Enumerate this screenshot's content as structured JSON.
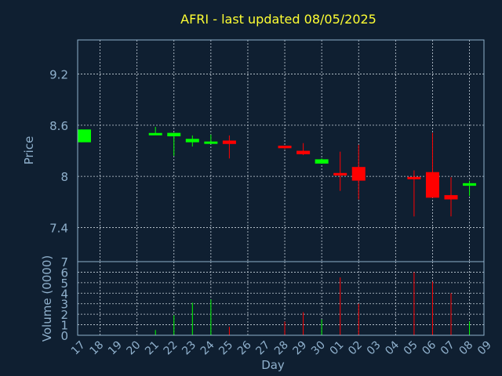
{
  "chart_data": {
    "type": "candlestick",
    "title": "AFRI - last updated 08/05/2025",
    "xlabel": "Day",
    "price_panel": {
      "ylabel": "Price",
      "ylim": [
        7.0,
        9.6
      ],
      "yticks": [
        "9.2",
        "8.6",
        "8",
        "7.4"
      ]
    },
    "volume_panel": {
      "ylabel": "Volume (0000)",
      "ylim": [
        0,
        7
      ],
      "yticks": [
        "0",
        "1",
        "2",
        "3",
        "4",
        "5",
        "6",
        "7"
      ]
    },
    "colors": {
      "up": "#00ff00",
      "down": "#ff0000"
    },
    "x_labels": [
      "17",
      "18",
      "19",
      "20",
      "21",
      "22",
      "23",
      "24",
      "25",
      "26",
      "27",
      "28",
      "29",
      "30",
      "01",
      "02",
      "03",
      "04",
      "05",
      "06",
      "07",
      "08",
      "09"
    ],
    "candles": [
      {
        "x": "17",
        "open": 8.4,
        "high": 8.55,
        "low": 8.4,
        "close": 8.55,
        "volume": 0
      },
      {
        "x": "21",
        "open": 8.49,
        "high": 8.58,
        "low": 8.49,
        "close": 8.5,
        "volume": 0.5
      },
      {
        "x": "22",
        "open": 8.47,
        "high": 8.51,
        "low": 8.24,
        "close": 8.51,
        "volume": 1.9
      },
      {
        "x": "23",
        "open": 8.4,
        "high": 8.48,
        "low": 8.35,
        "close": 8.44,
        "volume": 3.1
      },
      {
        "x": "24",
        "open": 8.39,
        "high": 8.49,
        "low": 8.39,
        "close": 8.4,
        "volume": 3.4
      },
      {
        "x": "25",
        "open": 8.42,
        "high": 8.48,
        "low": 8.21,
        "close": 8.38,
        "volume": 0.8
      },
      {
        "x": "28",
        "open": 8.36,
        "high": 8.36,
        "low": 8.32,
        "close": 8.33,
        "volume": 1.3
      },
      {
        "x": "29",
        "open": 8.3,
        "high": 8.39,
        "low": 8.25,
        "close": 8.26,
        "volume": 2.2
      },
      {
        "x": "30",
        "open": 8.15,
        "high": 8.21,
        "low": 8.15,
        "close": 8.2,
        "volume": 1.5
      },
      {
        "x": "01",
        "open": 8.04,
        "high": 8.29,
        "low": 7.83,
        "close": 8.01,
        "volume": 5.5
      },
      {
        "x": "02",
        "open": 8.11,
        "high": 8.37,
        "low": 7.73,
        "close": 7.95,
        "volume": 3.0
      },
      {
        "x": "05",
        "open": 7.99,
        "high": 8.07,
        "low": 7.53,
        "close": 7.97,
        "volume": 6.0
      },
      {
        "x": "06",
        "open": 8.05,
        "high": 8.51,
        "low": 7.75,
        "close": 7.75,
        "volume": 5.1
      },
      {
        "x": "07",
        "open": 7.78,
        "high": 7.99,
        "low": 7.53,
        "close": 7.73,
        "volume": 4.0
      },
      {
        "x": "08",
        "open": 7.89,
        "high": 7.95,
        "low": 7.77,
        "close": 7.92,
        "volume": 1.3
      }
    ]
  }
}
